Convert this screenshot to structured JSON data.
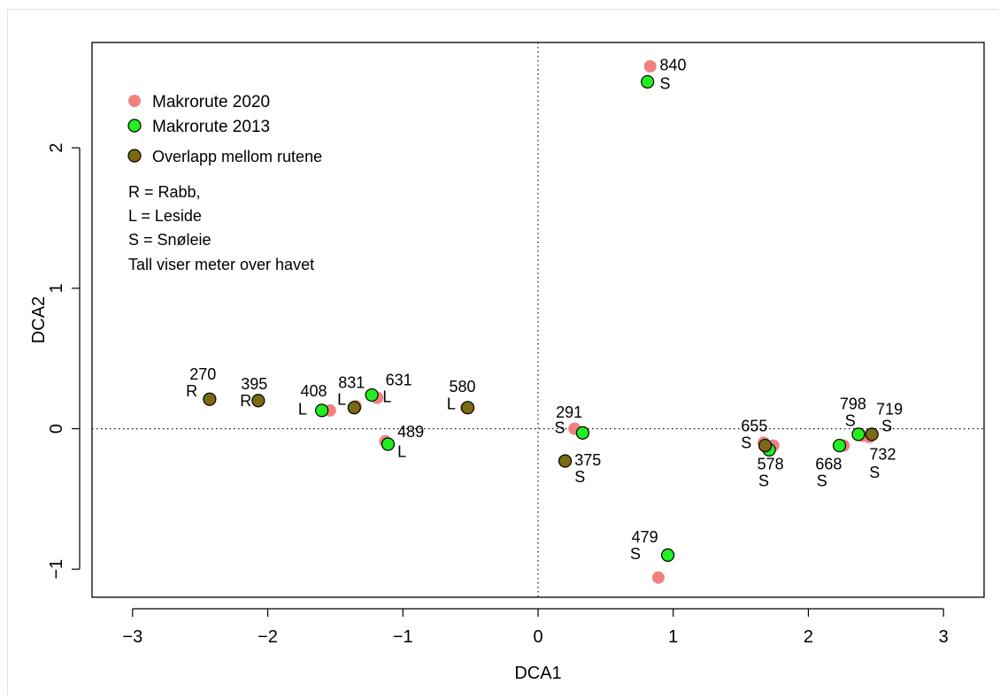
{
  "chart_data": {
    "type": "scatter",
    "xlabel": "DCA1",
    "ylabel": "DCA2",
    "xlim": [
      -3.3,
      3.3
    ],
    "ylim": [
      -1.2,
      2.75
    ],
    "xticks": [
      -3,
      -2,
      -1,
      0,
      1,
      2,
      3
    ],
    "yticks": [
      -1,
      0,
      1,
      2
    ],
    "reference_lines": {
      "x": 0,
      "y": 0,
      "style": "dotted"
    },
    "colors": {
      "2020": "#f08080",
      "2013": "#22ee22",
      "overlap": "#8a6a10"
    },
    "legend": {
      "placement": "top-left",
      "entries": [
        "Makrorute 2020",
        "Makrorute 2013",
        "Overlapp mellom rutene"
      ],
      "notes": [
        "R = Rabb,",
        "L = Leside",
        "S = Snøleie",
        "Tall viser meter over havet"
      ]
    },
    "series": [
      {
        "name": "Makrorute 2020",
        "points": [
          {
            "x": 0.83,
            "y": 2.58
          },
          {
            "x": 0.27,
            "y": 0.0
          },
          {
            "x": 0.89,
            "y": -1.06
          },
          {
            "x": -1.54,
            "y": 0.13
          },
          {
            "x": -1.35,
            "y": 0.16
          },
          {
            "x": -1.19,
            "y": 0.22
          },
          {
            "x": -1.13,
            "y": -0.09
          },
          {
            "x": -0.53,
            "y": 0.15
          },
          {
            "x": 1.67,
            "y": -0.1
          },
          {
            "x": 1.74,
            "y": -0.12
          },
          {
            "x": 2.26,
            "y": -0.12
          },
          {
            "x": 2.4,
            "y": -0.05
          },
          {
            "x": 2.45,
            "y": -0.06
          }
        ]
      },
      {
        "name": "Makrorute 2013",
        "points": [
          {
            "x": 0.81,
            "y": 2.47
          },
          {
            "x": 0.33,
            "y": -0.03
          },
          {
            "x": 0.96,
            "y": -0.9
          },
          {
            "x": -1.6,
            "y": 0.13
          },
          {
            "x": -1.23,
            "y": 0.24
          },
          {
            "x": -1.11,
            "y": -0.11
          },
          {
            "x": 1.71,
            "y": -0.15
          },
          {
            "x": 2.23,
            "y": -0.12
          },
          {
            "x": 2.37,
            "y": -0.04
          }
        ]
      },
      {
        "name": "Overlapp mellom rutene",
        "points": [
          {
            "x": -2.43,
            "y": 0.21
          },
          {
            "x": -2.07,
            "y": 0.2
          },
          {
            "x": -1.36,
            "y": 0.15
          },
          {
            "x": -0.52,
            "y": 0.15
          },
          {
            "x": 0.2,
            "y": -0.23
          },
          {
            "x": 1.68,
            "y": -0.12
          },
          {
            "x": 2.47,
            "y": -0.04
          }
        ]
      }
    ],
    "annotations": [
      {
        "text": "840",
        "x": 0.9,
        "y": 2.55,
        "anchor": "start"
      },
      {
        "text": "S",
        "x": 0.9,
        "y": 2.42,
        "anchor": "start"
      },
      {
        "text": "270",
        "x": -2.48,
        "y": 0.35,
        "anchor": "middle"
      },
      {
        "text": "R",
        "x": -2.52,
        "y": 0.23,
        "anchor": "end"
      },
      {
        "text": "395",
        "x": -2.1,
        "y": 0.28,
        "anchor": "middle"
      },
      {
        "text": "R",
        "x": -2.12,
        "y": 0.16,
        "anchor": "end"
      },
      {
        "text": "408",
        "x": -1.66,
        "y": 0.23,
        "anchor": "middle"
      },
      {
        "text": "L",
        "x": -1.71,
        "y": 0.1,
        "anchor": "end"
      },
      {
        "text": "831",
        "x": -1.38,
        "y": 0.29,
        "anchor": "middle"
      },
      {
        "text": "L",
        "x": -1.42,
        "y": 0.17,
        "anchor": "end"
      },
      {
        "text": "631",
        "x": -1.03,
        "y": 0.31,
        "anchor": "middle"
      },
      {
        "text": "L",
        "x": -1.15,
        "y": 0.19,
        "anchor": "start"
      },
      {
        "text": "489",
        "x": -1.04,
        "y": -0.06,
        "anchor": "start"
      },
      {
        "text": "L",
        "x": -1.04,
        "y": -0.2,
        "anchor": "start"
      },
      {
        "text": "580",
        "x": -0.56,
        "y": 0.26,
        "anchor": "middle"
      },
      {
        "text": "L",
        "x": -0.61,
        "y": 0.14,
        "anchor": "end"
      },
      {
        "text": "291",
        "x": 0.23,
        "y": 0.08,
        "anchor": "middle"
      },
      {
        "text": "S",
        "x": 0.2,
        "y": -0.03,
        "anchor": "end"
      },
      {
        "text": "375",
        "x": 0.27,
        "y": -0.26,
        "anchor": "start"
      },
      {
        "text": "S",
        "x": 0.27,
        "y": -0.38,
        "anchor": "start"
      },
      {
        "text": "479",
        "x": 0.79,
        "y": -0.81,
        "anchor": "middle"
      },
      {
        "text": "S",
        "x": 0.76,
        "y": -0.93,
        "anchor": "end"
      },
      {
        "text": "655",
        "x": 1.6,
        "y": -0.02,
        "anchor": "middle"
      },
      {
        "text": "S",
        "x": 1.58,
        "y": -0.14,
        "anchor": "end"
      },
      {
        "text": "578",
        "x": 1.72,
        "y": -0.29,
        "anchor": "middle"
      },
      {
        "text": "S",
        "x": 1.67,
        "y": -0.41,
        "anchor": "middle"
      },
      {
        "text": "798",
        "x": 2.33,
        "y": 0.14,
        "anchor": "middle"
      },
      {
        "text": "S",
        "x": 2.31,
        "y": 0.02,
        "anchor": "middle"
      },
      {
        "text": "719",
        "x": 2.6,
        "y": 0.1,
        "anchor": "middle"
      },
      {
        "text": "S",
        "x": 2.58,
        "y": -0.02,
        "anchor": "middle"
      },
      {
        "text": "668",
        "x": 2.15,
        "y": -0.29,
        "anchor": "middle"
      },
      {
        "text": "S",
        "x": 2.1,
        "y": -0.41,
        "anchor": "middle"
      },
      {
        "text": "732",
        "x": 2.55,
        "y": -0.22,
        "anchor": "middle"
      },
      {
        "text": "S",
        "x": 2.49,
        "y": -0.35,
        "anchor": "middle"
      }
    ]
  }
}
